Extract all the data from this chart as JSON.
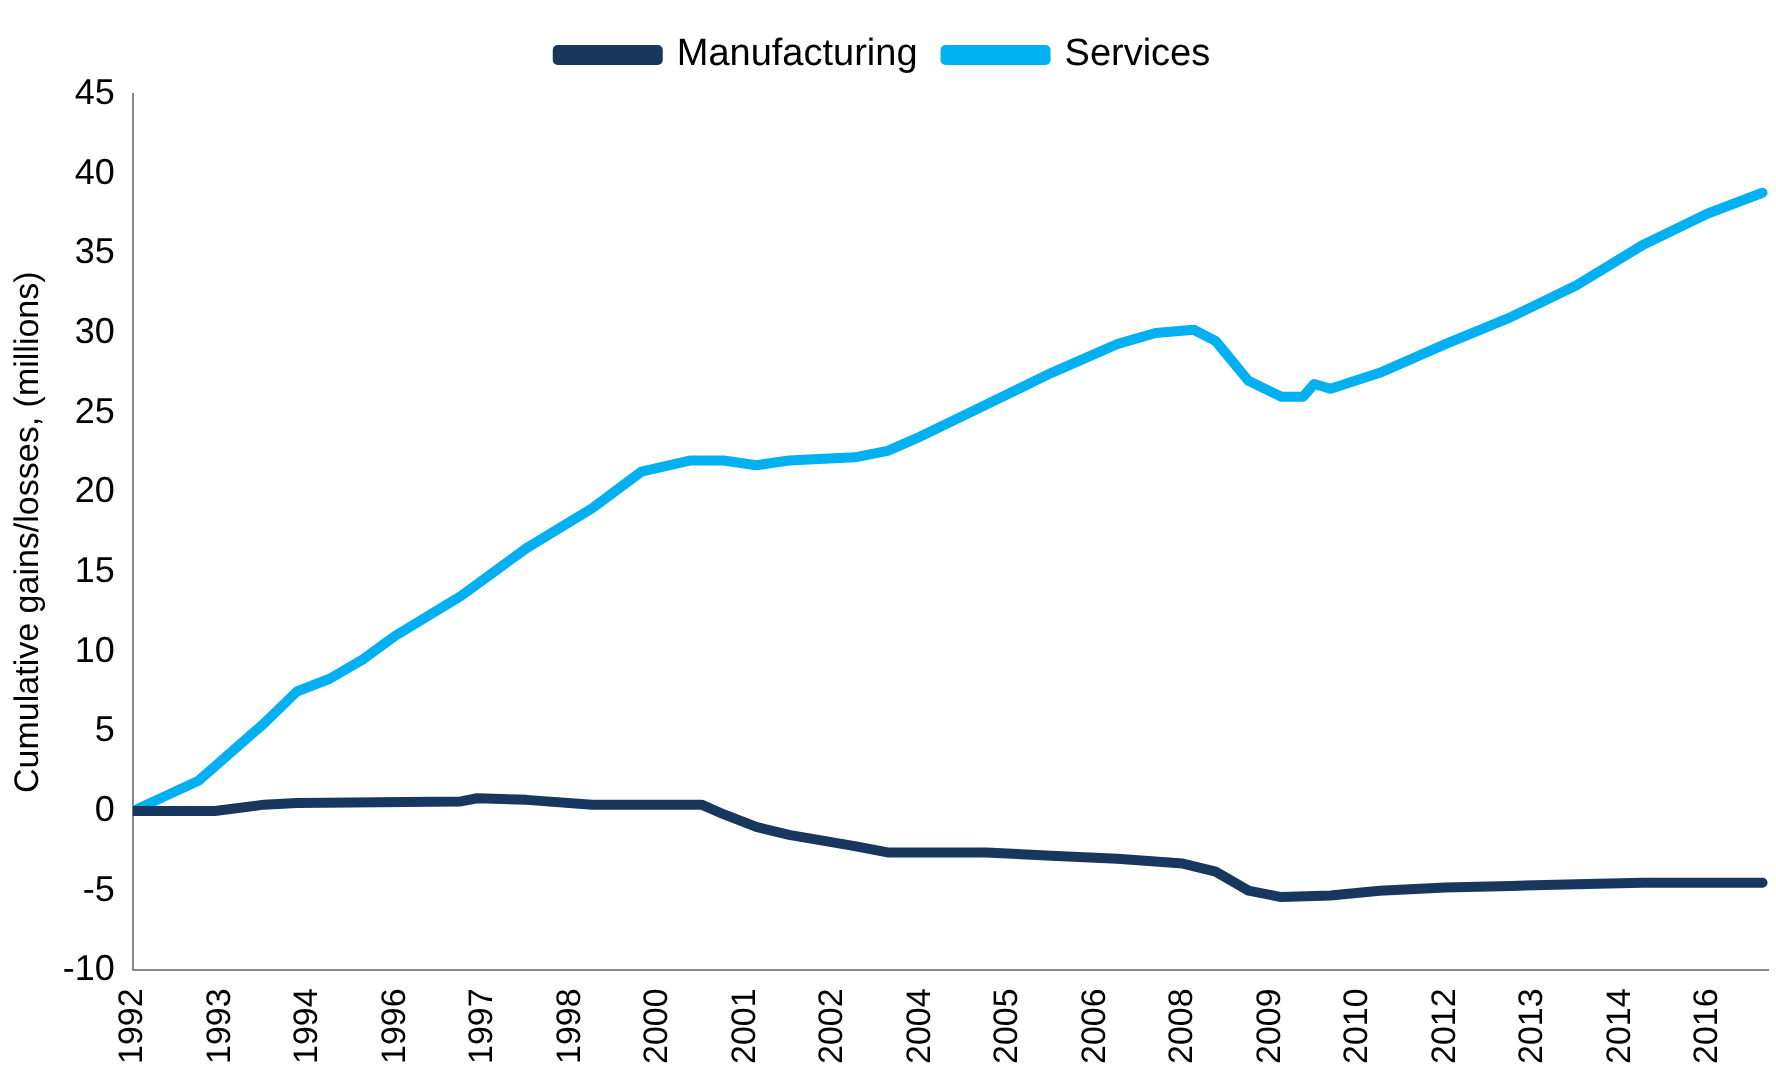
{
  "chart_data": {
    "type": "line",
    "ylabel": "Cumulative gains/losses, (millions)",
    "xlim": [
      "1992-01",
      "2016-12"
    ],
    "xticks": [
      {
        "value": "1992-01",
        "label": "1992"
      },
      {
        "value": "1993-05",
        "label": "1993"
      },
      {
        "value": "1994-09",
        "label": "1994"
      },
      {
        "value": "1996-01",
        "label": "1996"
      },
      {
        "value": "1997-05",
        "label": "1997"
      },
      {
        "value": "1998-09",
        "label": "1998"
      },
      {
        "value": "2000-01",
        "label": "2000"
      },
      {
        "value": "2001-05",
        "label": "2001"
      },
      {
        "value": "2002-09",
        "label": "2002"
      },
      {
        "value": "2004-01",
        "label": "2004"
      },
      {
        "value": "2005-05",
        "label": "2005"
      },
      {
        "value": "2006-09",
        "label": "2006"
      },
      {
        "value": "2008-01",
        "label": "2008"
      },
      {
        "value": "2009-05",
        "label": "2009"
      },
      {
        "value": "2010-09",
        "label": "2010"
      },
      {
        "value": "2012-01",
        "label": "2012"
      },
      {
        "value": "2013-05",
        "label": "2013"
      },
      {
        "value": "2014-09",
        "label": "2014"
      },
      {
        "value": "2016-01",
        "label": "2016"
      }
    ],
    "ylim": [
      -10,
      45
    ],
    "yticks": [
      -10,
      -5,
      0,
      5,
      10,
      15,
      20,
      25,
      30,
      35,
      40,
      45
    ],
    "grid": false,
    "legend": "top",
    "marker": "none",
    "line_style": "solid",
    "series": [
      {
        "name": "Manufacturing",
        "color": "#17375e",
        "x": [
          "1992-01",
          "1993-04",
          "1994-01",
          "1994-07",
          "1997-01",
          "1997-04",
          "1998-01",
          "1999-01",
          "2000-09",
          "2001-01",
          "2001-07",
          "2002-01",
          "2003-01",
          "2003-07",
          "2005-01",
          "2006-01",
          "2007-01",
          "2008-01",
          "2008-07",
          "2009-01",
          "2009-07",
          "2010-04",
          "2011-01",
          "2012-01",
          "2013-01",
          "2014-01",
          "2015-01",
          "2016-11"
        ],
        "values": [
          0,
          0,
          0.4,
          0.5,
          0.6,
          0.8,
          0.7,
          0.4,
          0.4,
          -0.2,
          -1,
          -1.5,
          -2.2,
          -2.6,
          -2.6,
          -2.8,
          -3,
          -3.3,
          -3.8,
          -5,
          -5.4,
          -5.3,
          -5,
          -4.8,
          -4.7,
          -4.6,
          -4.5,
          -4.5
        ]
      },
      {
        "name": "Services",
        "color": "#00b0f0",
        "x": [
          "1992-01",
          "1993-01",
          "1994-01",
          "1994-07",
          "1995-01",
          "1995-07",
          "1996-01",
          "1997-01",
          "1998-01",
          "1999-01",
          "1999-10",
          "2000-07",
          "2001-01",
          "2001-07",
          "2002-01",
          "2003-01",
          "2003-07",
          "2004-01",
          "2005-01",
          "2006-01",
          "2007-01",
          "2007-08",
          "2008-03",
          "2008-07",
          "2009-01",
          "2009-07",
          "2009-11",
          "2010-01",
          "2010-04",
          "2011-01",
          "2012-01",
          "2013-01",
          "2014-01",
          "2015-01",
          "2016-01",
          "2016-11"
        ],
        "values": [
          0,
          1.9,
          5.5,
          7.5,
          8.3,
          9.5,
          11,
          13.5,
          16.5,
          19,
          21.3,
          22,
          22,
          21.7,
          22,
          22.2,
          22.6,
          23.5,
          25.5,
          27.5,
          29.3,
          30,
          30.2,
          29.5,
          27,
          26,
          26,
          26.8,
          26.5,
          27.5,
          29.3,
          31,
          33,
          35.5,
          37.5,
          38.8
        ]
      }
    ]
  }
}
